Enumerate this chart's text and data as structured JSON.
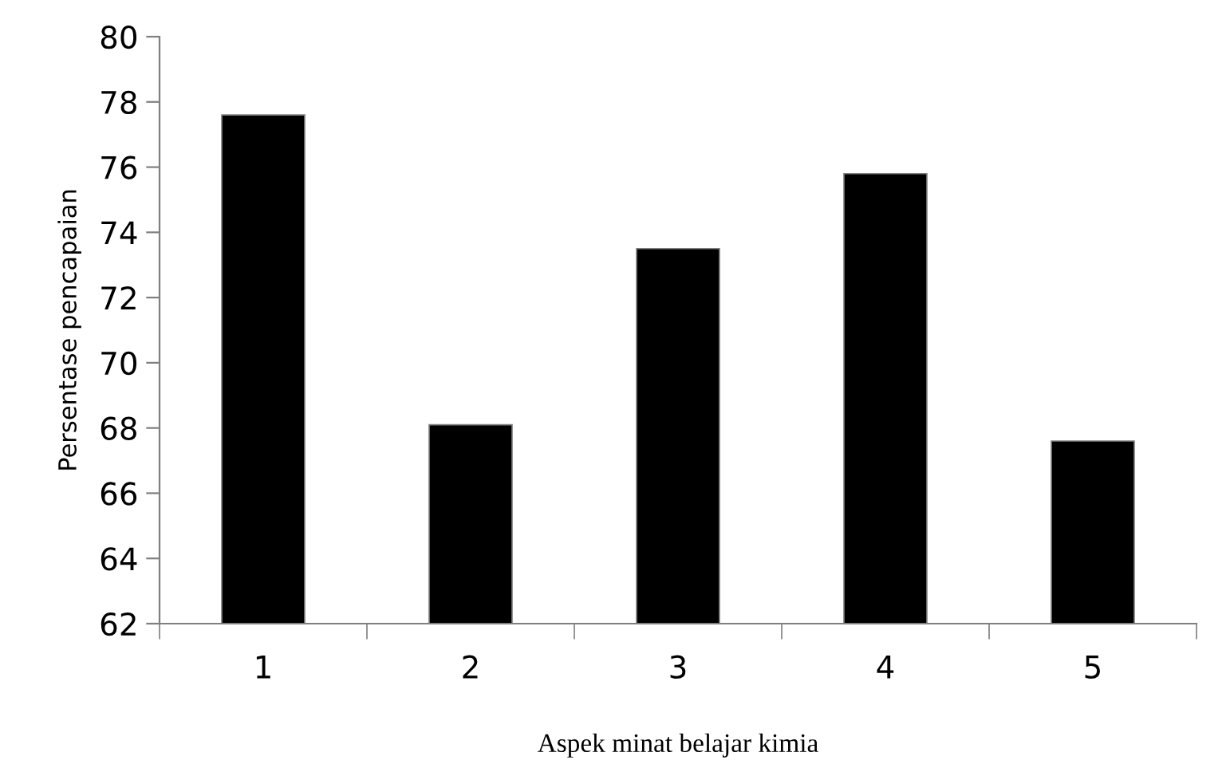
{
  "chart_data": {
    "type": "bar",
    "categories": [
      "1",
      "2",
      "3",
      "4",
      "5"
    ],
    "values": [
      77.6,
      68.1,
      73.5,
      75.8,
      67.6
    ],
    "color": "#000000",
    "xlabel": "Aspek minat belajar kimia",
    "ylabel": "Persentase pencapaian",
    "ylim": [
      62,
      80
    ],
    "yticks": [
      62,
      64,
      66,
      68,
      70,
      72,
      74,
      76,
      78,
      80
    ],
    "grid": false,
    "legend": false
  }
}
